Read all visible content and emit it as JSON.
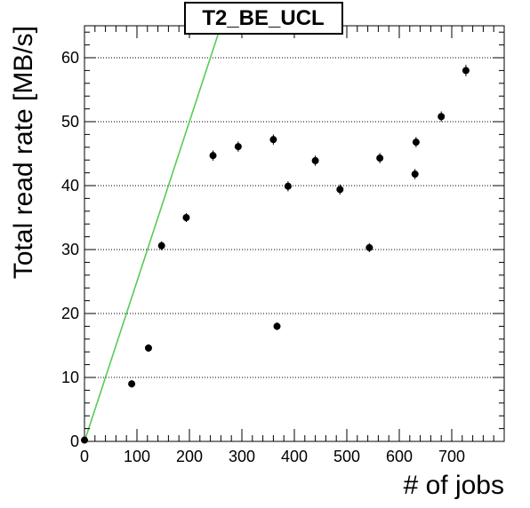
{
  "chart_data": {
    "type": "scatter",
    "title": "T2_BE_UCL",
    "xlabel": "# of jobs",
    "ylabel": "Total read rate [MB/s]",
    "xlim": [
      0,
      800
    ],
    "ylim": [
      0,
      65
    ],
    "x_ticks": [
      0,
      100,
      200,
      300,
      400,
      500,
      600,
      700
    ],
    "y_ticks": [
      0,
      10,
      20,
      30,
      40,
      50,
      60
    ],
    "grid": "horizontal dotted",
    "series": [
      {
        "points": [
          {
            "x": 0,
            "y": 0.2,
            "err": 0.4
          },
          {
            "x": 90,
            "y": 9.0,
            "err": 0.6
          },
          {
            "x": 122,
            "y": 14.6,
            "err": 0.6
          },
          {
            "x": 147,
            "y": 30.6,
            "err": 0.7
          },
          {
            "x": 194,
            "y": 35.0,
            "err": 0.7
          },
          {
            "x": 245,
            "y": 44.7,
            "err": 0.8
          },
          {
            "x": 293,
            "y": 46.1,
            "err": 0.8
          },
          {
            "x": 360,
            "y": 47.2,
            "err": 0.8
          },
          {
            "x": 367,
            "y": 18.0,
            "err": 0.6
          },
          {
            "x": 388,
            "y": 39.9,
            "err": 0.8
          },
          {
            "x": 440,
            "y": 43.9,
            "err": 0.8
          },
          {
            "x": 487,
            "y": 39.4,
            "err": 0.8
          },
          {
            "x": 543,
            "y": 30.3,
            "err": 0.7
          },
          {
            "x": 563,
            "y": 44.3,
            "err": 0.8
          },
          {
            "x": 630,
            "y": 41.8,
            "err": 0.8
          },
          {
            "x": 632,
            "y": 46.8,
            "err": 0.8
          },
          {
            "x": 680,
            "y": 50.8,
            "err": 0.8
          },
          {
            "x": 727,
            "y": 58.0,
            "err": 0.9
          }
        ],
        "color": "#000000"
      }
    ],
    "reference_line": {
      "slope": 0.25,
      "intercept": 0,
      "color": "#55cc55"
    }
  }
}
